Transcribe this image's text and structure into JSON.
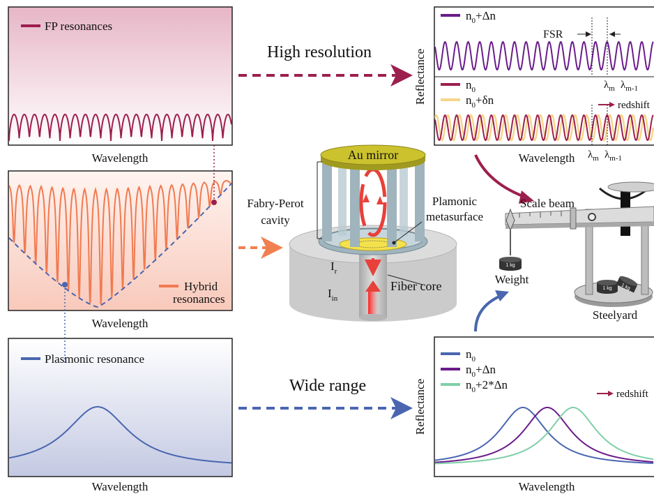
{
  "panels": {
    "fp": {
      "legend": "FP resonances",
      "xlabel": "Wavelength"
    },
    "hybrid": {
      "legend": [
        "Hybrid",
        "resonances"
      ],
      "xlabel": "Wavelength"
    },
    "plasmonic": {
      "legend": "Plasmonic resonance",
      "xlabel": "Wavelength"
    }
  },
  "arrows": {
    "high": "High resolution",
    "wide": "Wide range"
  },
  "device": {
    "mirror": "Au mirror",
    "cavity": [
      "Fabry-Perot",
      "cavity"
    ],
    "metasurface": [
      "Plamonic",
      "metasurface"
    ],
    "ir": [
      "I",
      "r"
    ],
    "iin": [
      "I",
      "in"
    ],
    "core": "Fiber core"
  },
  "high_res_plot": {
    "ylabel": "Reflectance",
    "xlabel": "Wavelength",
    "legend_top": [
      "n",
      "0",
      "+Δn"
    ],
    "legend_bottom": [
      [
        "n",
        "0"
      ],
      [
        "n",
        "0",
        "+δn"
      ]
    ],
    "fsr": "FSR",
    "lambda_top": [
      [
        "λ",
        "m"
      ],
      [
        "λ",
        "m-1"
      ]
    ],
    "lambda_bottom": [
      [
        "λ",
        "m"
      ],
      [
        "λ",
        "m-1"
      ]
    ],
    "redshift": "redshift"
  },
  "wide_range_plot": {
    "ylabel": "Reflectance",
    "xlabel": "Wavelength",
    "legend": [
      [
        "n",
        "0"
      ],
      [
        "n",
        "0",
        "+Δn"
      ],
      [
        "n",
        "0",
        "+2*Δn"
      ]
    ],
    "redshift": "redshift"
  },
  "steelyard": {
    "beam": "Scale beam",
    "weight": "Weight",
    "kg": [
      "1 kg",
      "1 kg",
      "1 kg"
    ],
    "name": "Steelyard"
  }
}
